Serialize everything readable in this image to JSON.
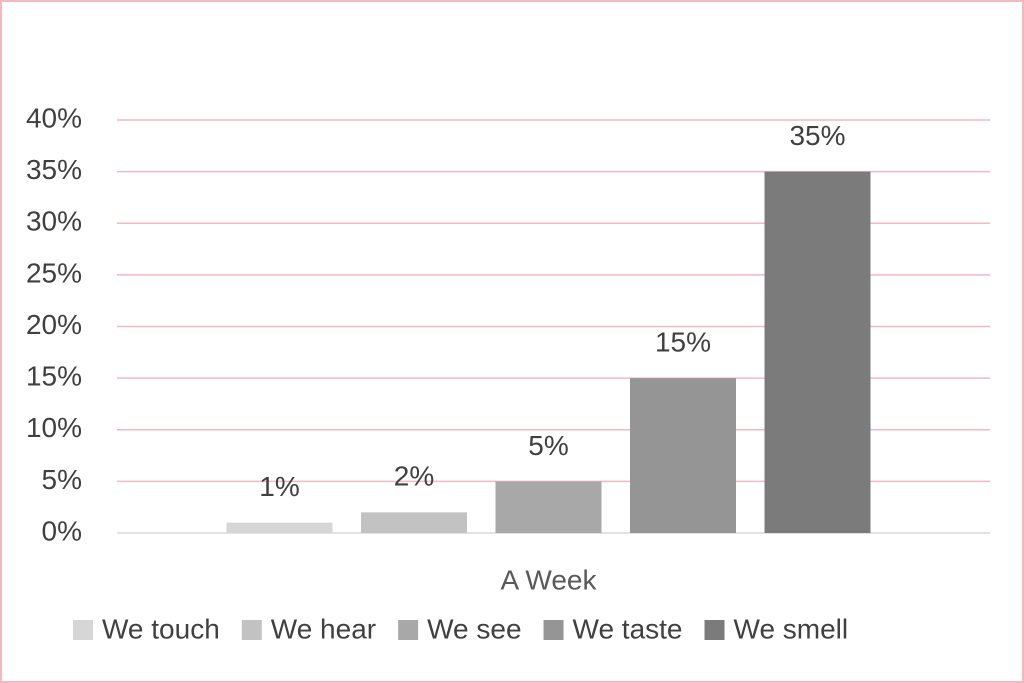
{
  "chart_data": {
    "type": "bar",
    "categories": [
      "A Week"
    ],
    "series": [
      {
        "name": "We touch",
        "color": "#d6d6d6",
        "values": [
          1
        ],
        "value_labels": [
          "1%"
        ]
      },
      {
        "name": "We hear",
        "color": "#c2c2c2",
        "values": [
          2
        ],
        "value_labels": [
          "2%"
        ]
      },
      {
        "name": "We see",
        "color": "#a8a8a8",
        "values": [
          5
        ],
        "value_labels": [
          "5%"
        ]
      },
      {
        "name": "We taste",
        "color": "#959595",
        "values": [
          15
        ],
        "value_labels": [
          "15%"
        ]
      },
      {
        "name": "We smell",
        "color": "#7b7b7b",
        "values": [
          35
        ],
        "value_labels": [
          "35%"
        ]
      }
    ],
    "ylim": [
      0,
      40
    ],
    "yticks": [
      {
        "value": 0,
        "label": "0%"
      },
      {
        "value": 5,
        "label": "5%"
      },
      {
        "value": 10,
        "label": "10%"
      },
      {
        "value": 15,
        "label": "15%"
      },
      {
        "value": 20,
        "label": "20%"
      },
      {
        "value": 25,
        "label": "25%"
      },
      {
        "value": 30,
        "label": "30%"
      },
      {
        "value": 35,
        "label": "35%"
      },
      {
        "value": 40,
        "label": "40%"
      }
    ],
    "grid": true,
    "grid_color": "#f2b8c4",
    "legend": "bottom"
  }
}
